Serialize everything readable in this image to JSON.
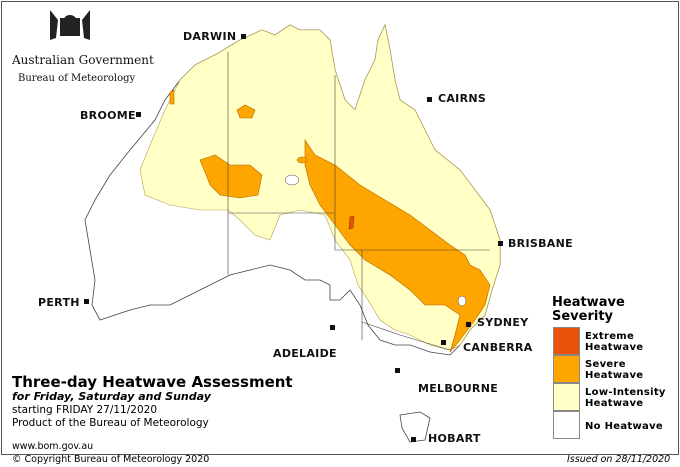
{
  "logo": {
    "line1": "Australian Government",
    "line2": "Bureau of Meteorology"
  },
  "cities": [
    {
      "name": "DARWIN"
    },
    {
      "name": "CAIRNS"
    },
    {
      "name": "BROOME"
    },
    {
      "name": "BRISBANE"
    },
    {
      "name": "PERTH"
    },
    {
      "name": "SYDNEY"
    },
    {
      "name": "ADELAIDE"
    },
    {
      "name": "CANBERRA"
    },
    {
      "name": "MELBOURNE"
    },
    {
      "name": "HOBART"
    }
  ],
  "title": "Three-day Heatwave Assessment",
  "subtitle": "for Friday, Saturday and Sunday",
  "starting": "starting FRIDAY 27/11/2020",
  "product": "Product of the Bureau of Meteorology",
  "website": "www.bom.gov.au",
  "copyright": "© Copyright Bureau of Meteorology 2020",
  "issued": "Issued on 28/11/2020",
  "legend": {
    "title": "Heatwave Severity",
    "items": [
      {
        "label": "Extreme Heatwave",
        "color": "#e8520a"
      },
      {
        "label": "Severe Heatwave",
        "color": "#ffa500"
      },
      {
        "label": "Low-Intensity Heatwave",
        "color": "#ffffc6"
      },
      {
        "label": "No Heatwave",
        "color": "#ffffff"
      }
    ]
  }
}
